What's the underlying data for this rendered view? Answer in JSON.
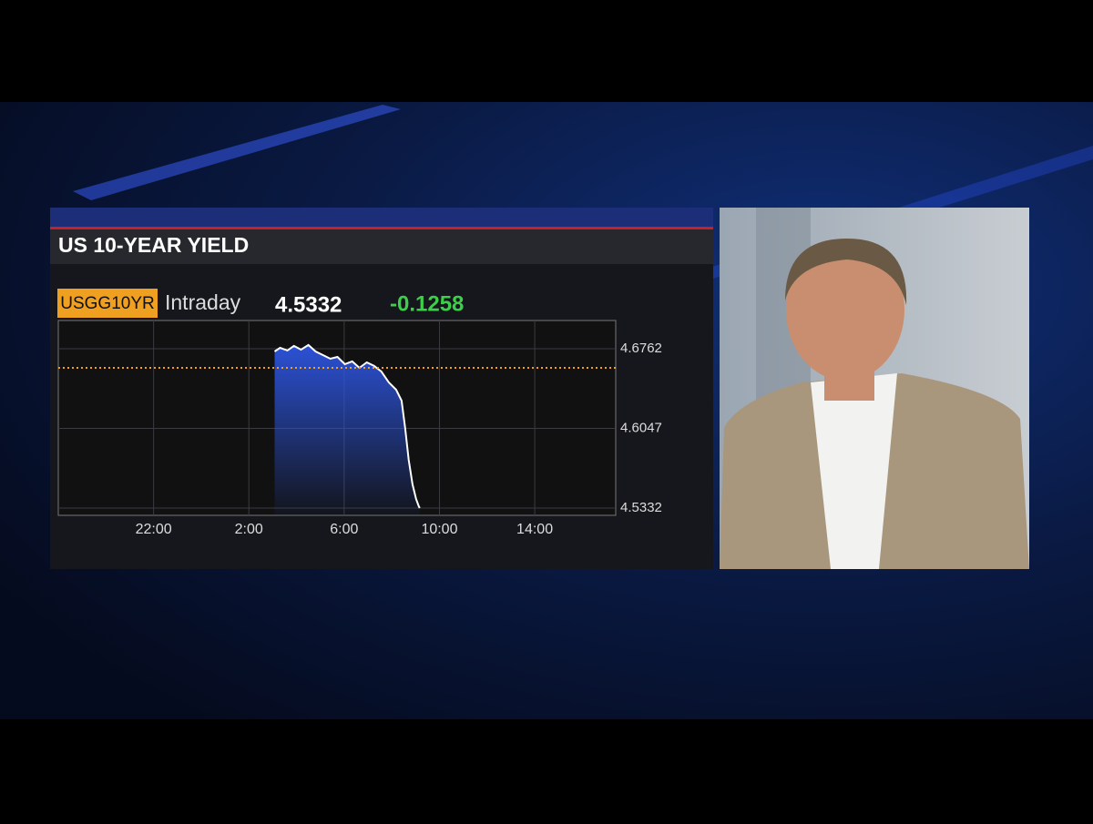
{
  "chart_data": {
    "type": "area",
    "title": "US 10-YEAR YIELD",
    "ticker": "USGG10YR",
    "period": "Intraday",
    "last_value": 4.5332,
    "change": -0.1258,
    "x": [
      27.08,
      27.31,
      27.62,
      27.89,
      28.19,
      28.5,
      28.8,
      29.11,
      29.42,
      29.72,
      30.03,
      30.34,
      30.64,
      30.95,
      31.26,
      31.56,
      31.87,
      32.18,
      32.41,
      32.56,
      32.71,
      32.87,
      33.02,
      33.13,
      33.17
    ],
    "values": [
      4.6737,
      4.677,
      4.6746,
      4.6787,
      4.6754,
      4.6795,
      4.6737,
      4.6705,
      4.6672,
      4.6688,
      4.6623,
      4.6648,
      4.659,
      4.6639,
      4.6607,
      4.6558,
      4.646,
      4.6394,
      4.6296,
      4.6051,
      4.5765,
      4.5545,
      4.5414,
      4.535,
      4.5332
    ],
    "color": "#ffffff",
    "fill_color": "#2d55e0",
    "reference_line": 4.659,
    "reference_color": "#f0a020",
    "xlim": [
      18,
      41.4
    ],
    "xticks": [
      {
        "value": 22,
        "label": "22:00"
      },
      {
        "value": 26,
        "label": "2:00"
      },
      {
        "value": 30,
        "label": "6:00"
      },
      {
        "value": 34,
        "label": "10:00"
      },
      {
        "value": 38,
        "label": "14:00"
      }
    ],
    "ylim": [
      4.5267,
      4.7015
    ],
    "yticks": [
      4.5332,
      4.6047,
      4.6762
    ],
    "grid": true
  }
}
